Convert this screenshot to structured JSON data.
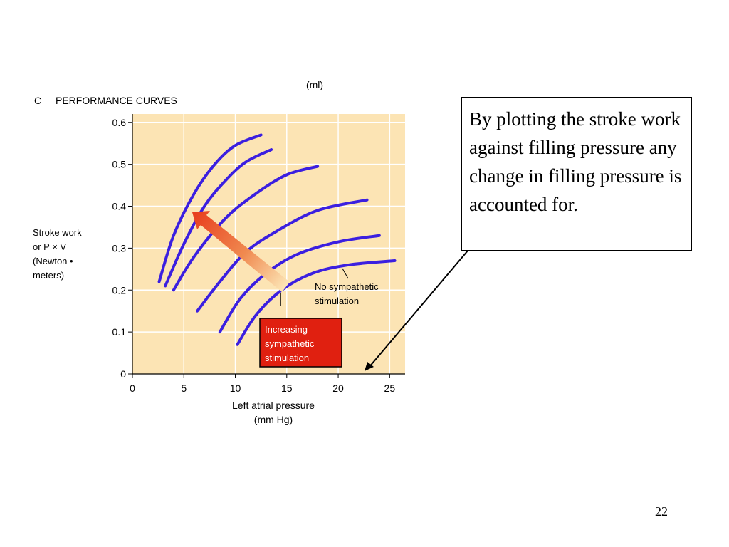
{
  "slide": {
    "callout_text": "By plotting the stroke work against filling pressure any change in filling pressure is accounted for.",
    "page_number": "22"
  },
  "chart_data": {
    "type": "line",
    "panel_label": "C",
    "title": "PERFORMANCE CURVES",
    "top_unit_label": "(ml)",
    "ylabel_lines": [
      "Stroke work",
      "or P × V",
      "(Newton •",
      "meters)"
    ],
    "xlabel_lines": [
      "Left atrial pressure",
      "(mm Hg)"
    ],
    "xlim": [
      0,
      26.5
    ],
    "ylim": [
      0,
      0.62
    ],
    "xticks": [
      "0",
      "5",
      "10",
      "15",
      "20",
      "25"
    ],
    "yticks": [
      "0",
      "0.1",
      "0.2",
      "0.3",
      "0.4",
      "0.5",
      "0.6"
    ],
    "xtick_values": [
      0,
      5,
      10,
      15,
      20,
      25
    ],
    "ytick_values": [
      0,
      0.1,
      0.2,
      0.3,
      0.4,
      0.5,
      0.6
    ],
    "grid": true,
    "colors": {
      "plot_background": "#fce4b4",
      "grid": "#ffffff",
      "curve": "#3b1fe0",
      "arrow": "#e8401f",
      "label_box": "#e02010"
    },
    "series": [
      {
        "x": [
          2.6,
          4,
          6,
          8,
          10,
          12.5
        ],
        "y": [
          0.22,
          0.33,
          0.43,
          0.5,
          0.545,
          0.57
        ]
      },
      {
        "x": [
          3.2,
          5,
          7,
          9,
          11,
          13.5
        ],
        "y": [
          0.21,
          0.31,
          0.4,
          0.46,
          0.505,
          0.535
        ]
      },
      {
        "x": [
          4,
          6,
          9,
          12,
          15,
          18
        ],
        "y": [
          0.2,
          0.28,
          0.37,
          0.43,
          0.475,
          0.495
        ]
      },
      {
        "x": [
          6.3,
          8.5,
          11,
          14,
          18,
          22.8
        ],
        "y": [
          0.15,
          0.22,
          0.29,
          0.34,
          0.39,
          0.415
        ]
      },
      {
        "x": [
          8.5,
          10.5,
          13,
          16,
          20,
          24
        ],
        "y": [
          0.1,
          0.18,
          0.24,
          0.285,
          0.315,
          0.33
        ]
      },
      {
        "x": [
          10.2,
          12,
          14.5,
          17.5,
          21,
          25.5
        ],
        "y": [
          0.07,
          0.14,
          0.2,
          0.24,
          0.26,
          0.27
        ]
      }
    ],
    "annotations": {
      "no_stimulation_lines": [
        "No sympathetic",
        "stimulation"
      ],
      "increasing_stimulation_lines": [
        "Increasing",
        "sympathetic",
        "stimulation"
      ],
      "arrow_from": [
        15,
        0.215
      ],
      "arrow_to": [
        6.2,
        0.395
      ]
    }
  }
}
